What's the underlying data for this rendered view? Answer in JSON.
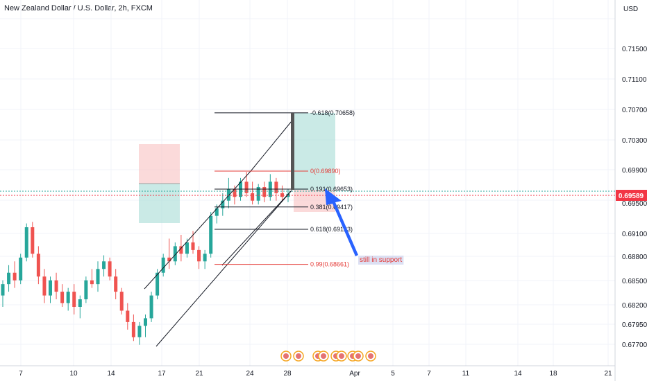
{
  "header": {
    "title": "New Zealand Dollar / U.S. Dollar, 2h, FXCM",
    "currency": "USD"
  },
  "colors": {
    "up": "#26a69a",
    "down": "#ef5350",
    "grid": "#f0f3fa",
    "fib_gray": "#131722",
    "fib_red": "#e53935",
    "arrow": "#2962ff",
    "price": "#f23645"
  },
  "chart_data": {
    "type": "candlestick",
    "title": "New Zealand Dollar / U.S. Dollar, 2h, FXCM",
    "y_ticks": [
      "0.71500",
      "0.71100",
      "0.70700",
      "0.70300",
      "0.69900",
      "0.69500",
      "0.69100",
      "0.68800",
      "0.68500",
      "0.68200",
      "0.67950",
      "0.67700"
    ],
    "x_ticks": [
      "7",
      "10",
      "14",
      "17",
      "21",
      "24",
      "28",
      "Apr",
      "5",
      "7",
      "11",
      "14",
      "18",
      "21"
    ],
    "current_price": "0.69589",
    "ylim": [
      0.6755,
      0.7185
    ],
    "candles": [
      [
        0.6825,
        0.6845,
        0.681,
        0.684
      ],
      [
        0.684,
        0.6865,
        0.683,
        0.6855
      ],
      [
        0.6855,
        0.687,
        0.6835,
        0.6845
      ],
      [
        0.6845,
        0.688,
        0.684,
        0.6875
      ],
      [
        0.6875,
        0.692,
        0.687,
        0.6915
      ],
      [
        0.6915,
        0.6922,
        0.6875,
        0.688
      ],
      [
        0.688,
        0.689,
        0.684,
        0.685
      ],
      [
        0.685,
        0.686,
        0.6815,
        0.6825
      ],
      [
        0.6825,
        0.685,
        0.6815,
        0.6845
      ],
      [
        0.6845,
        0.6855,
        0.682,
        0.683
      ],
      [
        0.683,
        0.684,
        0.681,
        0.6815
      ],
      [
        0.6815,
        0.6835,
        0.6805,
        0.683
      ],
      [
        0.683,
        0.684,
        0.68,
        0.681
      ],
      [
        0.681,
        0.6825,
        0.6795,
        0.682
      ],
      [
        0.682,
        0.685,
        0.6815,
        0.6845
      ],
      [
        0.6845,
        0.686,
        0.6835,
        0.684
      ],
      [
        0.684,
        0.687,
        0.683,
        0.686
      ],
      [
        0.686,
        0.6878,
        0.685,
        0.687
      ],
      [
        0.687,
        0.6875,
        0.6845,
        0.685
      ],
      [
        0.685,
        0.686,
        0.682,
        0.683
      ],
      [
        0.683,
        0.6835,
        0.68,
        0.6805
      ],
      [
        0.6805,
        0.6815,
        0.678,
        0.679
      ],
      [
        0.679,
        0.68,
        0.6765,
        0.677
      ],
      [
        0.677,
        0.679,
        0.676,
        0.6785
      ],
      [
        0.6785,
        0.68,
        0.677,
        0.6795
      ],
      [
        0.6795,
        0.683,
        0.679,
        0.6825
      ],
      [
        0.6825,
        0.686,
        0.682,
        0.6855
      ],
      [
        0.6855,
        0.688,
        0.685,
        0.6875
      ],
      [
        0.6875,
        0.69,
        0.686,
        0.687
      ],
      [
        0.687,
        0.6895,
        0.6865,
        0.689
      ],
      [
        0.689,
        0.6905,
        0.687,
        0.688
      ],
      [
        0.688,
        0.69,
        0.6875,
        0.6895
      ],
      [
        0.6895,
        0.691,
        0.688,
        0.6885
      ],
      [
        0.6885,
        0.689,
        0.686,
        0.687
      ],
      [
        0.687,
        0.6885,
        0.686,
        0.688
      ],
      [
        0.688,
        0.6935,
        0.6875,
        0.693
      ],
      [
        0.693,
        0.6945,
        0.692,
        0.694
      ],
      [
        0.694,
        0.696,
        0.693,
        0.695
      ],
      [
        0.695,
        0.698,
        0.694,
        0.6965
      ],
      [
        0.6965,
        0.697,
        0.6945,
        0.6955
      ],
      [
        0.6955,
        0.698,
        0.695,
        0.6975
      ],
      [
        0.6975,
        0.6988,
        0.6955,
        0.696
      ],
      [
        0.696,
        0.6975,
        0.6945,
        0.695
      ],
      [
        0.695,
        0.6972,
        0.6945,
        0.6968
      ],
      [
        0.6968,
        0.6975,
        0.6948,
        0.6955
      ],
      [
        0.6955,
        0.6985,
        0.695,
        0.6975
      ],
      [
        0.6975,
        0.698,
        0.695,
        0.696
      ],
      [
        0.696,
        0.697,
        0.695,
        0.6955
      ],
      [
        0.6955,
        0.6965,
        0.6948,
        0.6959
      ]
    ],
    "fib_levels": [
      {
        "label": "-0.618(0.70658)",
        "value": 0.70658
      },
      {
        "label": "0(0.69890)",
        "value": 0.6989
      },
      {
        "label": "0.191(0.69653)",
        "value": 0.69653
      },
      {
        "label": "0.381(0.69417)",
        "value": 0.69417
      },
      {
        "label": "0.618(0.69123)",
        "value": 0.69123
      },
      {
        "label": "0.99(0.68661)",
        "value": 0.68661
      }
    ],
    "annotation": "still in support"
  }
}
